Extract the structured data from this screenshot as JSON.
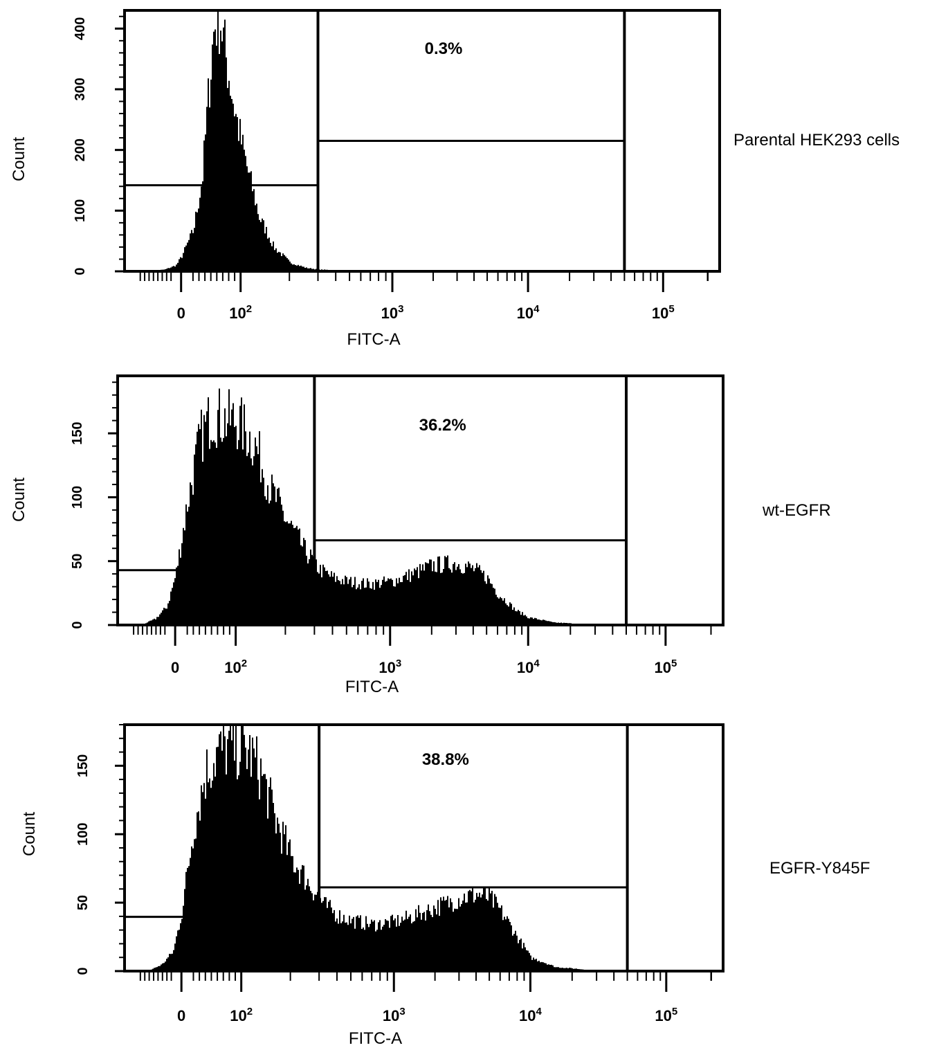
{
  "chart_data": [
    {
      "type": "area",
      "sample_label": "Parental HEK293 cells",
      "xlabel": "FITC-A",
      "ylabel": "Count",
      "gate_percent": "0.3%",
      "x_ticks": [
        {
          "value": 0,
          "base": "0",
          "exp": ""
        },
        {
          "value": 100,
          "base": "10",
          "exp": "2"
        },
        {
          "value": 1000,
          "base": "10",
          "exp": "3"
        },
        {
          "value": 10000,
          "base": "10",
          "exp": "4"
        },
        {
          "value": 100000,
          "base": "10",
          "exp": "5"
        }
      ],
      "y_ticks": [
        {
          "value": 0,
          "label": "0"
        },
        {
          "value": 100,
          "label": "100"
        },
        {
          "value": 200,
          "label": "200"
        },
        {
          "value": 300,
          "label": "300"
        },
        {
          "value": 400,
          "label": "400"
        }
      ],
      "ylim": [
        0,
        430
      ],
      "gate_range": [
        300,
        50000
      ],
      "histogram": [
        [
          -60,
          0
        ],
        [
          -30,
          3
        ],
        [
          -10,
          10
        ],
        [
          0,
          25
        ],
        [
          20,
          70
        ],
        [
          35,
          160
        ],
        [
          45,
          300
        ],
        [
          55,
          420
        ],
        [
          65,
          430
        ],
        [
          75,
          360
        ],
        [
          90,
          270
        ],
        [
          110,
          170
        ],
        [
          130,
          90
        ],
        [
          160,
          40
        ],
        [
          200,
          15
        ],
        [
          250,
          6
        ],
        [
          300,
          3
        ],
        [
          500,
          1
        ],
        [
          1000,
          0
        ]
      ]
    },
    {
      "type": "area",
      "sample_label": "wt-EGFR",
      "xlabel": "FITC-A",
      "ylabel": "Count",
      "gate_percent": "36.2%",
      "x_ticks": [
        {
          "value": 0,
          "base": "0",
          "exp": ""
        },
        {
          "value": 100,
          "base": "10",
          "exp": "2"
        },
        {
          "value": 1000,
          "base": "10",
          "exp": "3"
        },
        {
          "value": 10000,
          "base": "10",
          "exp": "4"
        },
        {
          "value": 100000,
          "base": "10",
          "exp": "5"
        }
      ],
      "y_ticks": [
        {
          "value": 0,
          "label": "0"
        },
        {
          "value": 50,
          "label": "50"
        },
        {
          "value": 100,
          "label": "100"
        },
        {
          "value": 150,
          "label": "150"
        }
      ],
      "ylim": [
        0,
        195
      ],
      "gate_range": [
        300,
        50000
      ],
      "histogram": [
        [
          -60,
          0
        ],
        [
          -35,
          5
        ],
        [
          -15,
          15
        ],
        [
          0,
          40
        ],
        [
          20,
          100
        ],
        [
          40,
          150
        ],
        [
          60,
          170
        ],
        [
          85,
          165
        ],
        [
          100,
          165
        ],
        [
          130,
          145
        ],
        [
          160,
          110
        ],
        [
          200,
          85
        ],
        [
          260,
          60
        ],
        [
          320,
          45
        ],
        [
          400,
          38
        ],
        [
          500,
          35
        ],
        [
          700,
          33
        ],
        [
          1000,
          35
        ],
        [
          1500,
          42
        ],
        [
          2000,
          48
        ],
        [
          3000,
          50
        ],
        [
          4000,
          45
        ],
        [
          5000,
          38
        ],
        [
          6000,
          25
        ],
        [
          8000,
          12
        ],
        [
          10000,
          6
        ],
        [
          15000,
          2
        ],
        [
          30000,
          0
        ]
      ]
    },
    {
      "type": "area",
      "sample_label": "EGFR-Y845F",
      "xlabel": "FITC-A",
      "ylabel": "Count",
      "gate_percent": "38.8%",
      "x_ticks": [
        {
          "value": 0,
          "base": "0",
          "exp": ""
        },
        {
          "value": 100,
          "base": "10",
          "exp": "2"
        },
        {
          "value": 1000,
          "base": "10",
          "exp": "3"
        },
        {
          "value": 10000,
          "base": "10",
          "exp": "4"
        },
        {
          "value": 100000,
          "base": "10",
          "exp": "5"
        }
      ],
      "y_ticks": [
        {
          "value": 0,
          "label": "0"
        },
        {
          "value": 50,
          "label": "50"
        },
        {
          "value": 100,
          "label": "100"
        },
        {
          "value": 150,
          "label": "150"
        }
      ],
      "ylim": [
        0,
        180
      ],
      "gate_range": [
        300,
        50000
      ],
      "histogram": [
        [
          -60,
          0
        ],
        [
          -35,
          5
        ],
        [
          -15,
          15
        ],
        [
          0,
          45
        ],
        [
          20,
          110
        ],
        [
          40,
          150
        ],
        [
          60,
          165
        ],
        [
          85,
          170
        ],
        [
          110,
          165
        ],
        [
          130,
          150
        ],
        [
          160,
          115
        ],
        [
          200,
          85
        ],
        [
          260,
          65
        ],
        [
          320,
          50
        ],
        [
          400,
          42
        ],
        [
          500,
          38
        ],
        [
          700,
          35
        ],
        [
          1000,
          37
        ],
        [
          1500,
          43
        ],
        [
          2000,
          48
        ],
        [
          3000,
          55
        ],
        [
          4000,
          58
        ],
        [
          5000,
          55
        ],
        [
          6000,
          45
        ],
        [
          8000,
          25
        ],
        [
          10000,
          10
        ],
        [
          15000,
          3
        ],
        [
          30000,
          0
        ]
      ]
    }
  ]
}
